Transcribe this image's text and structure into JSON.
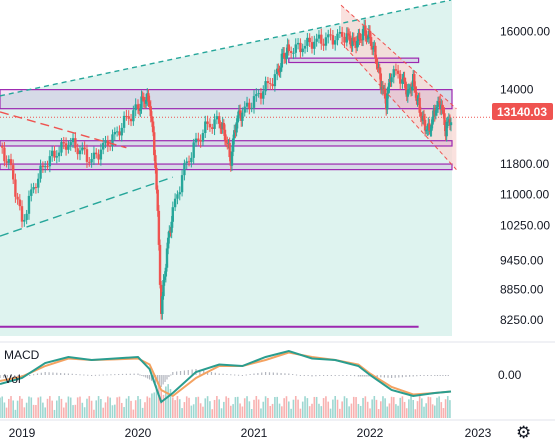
{
  "chart_data": {
    "type": "candlestick",
    "y_axis": {
      "scale": "log",
      "tick_labels": [
        "16000.00",
        "14000",
        "11800.00",
        "11000.00",
        "10250.00",
        "9450.00",
        "8850.00",
        "8250.00"
      ],
      "tick_values": [
        16000,
        14000,
        11800,
        11000,
        10250,
        9450,
        8850,
        8250
      ],
      "ylim": [
        7950,
        17200
      ]
    },
    "x_axis": {
      "tick_labels": [
        "2019",
        "2020",
        "2021",
        "2022",
        "2023"
      ],
      "tick_values": [
        2019,
        2020,
        2021,
        2022,
        2023
      ],
      "xlim": [
        2018.8,
        2023.2
      ]
    },
    "last_price": {
      "label": "13140.03",
      "value": 13140,
      "color": "#ef5350"
    },
    "zones": [
      {
        "y_from": 13400,
        "y_to": 14000
      },
      {
        "y_from": 12300,
        "y_to": 12450
      },
      {
        "y_from": 11650,
        "y_to": 11800
      },
      {
        "y_from": 14900,
        "y_to": 15050
      }
    ],
    "support_line": {
      "value": 8120,
      "x_from": 2018.8,
      "x_to": 2022.45
    },
    "channel": {
      "x_from": 2021.75,
      "x_to": 2022.8,
      "top": [
        17000,
        13400
      ],
      "bottom": [
        15600,
        11650
      ]
    },
    "trendlines": [
      {
        "style": "dashed",
        "color": "#26a69a",
        "x1": 2018.8,
        "y1": 13800,
        "x2": 2022.75,
        "y2": 17200
      },
      {
        "style": "dashed",
        "color": "#26a69a",
        "x1": 2018.8,
        "y1": 10000,
        "x2": 2020.3,
        "y2": 11450
      },
      {
        "style": "dashed",
        "color": "#ef5350",
        "x1": 2018.8,
        "y1": 13300,
        "x2": 2019.9,
        "y2": 12250
      }
    ],
    "macd": {
      "label": "MACD",
      "tick_label": "0.00",
      "x": [
        2018.8,
        2019.0,
        2019.2,
        2019.4,
        2019.6,
        2019.8,
        2020.0,
        2020.1,
        2020.2,
        2020.3,
        2020.5,
        2020.7,
        2020.9,
        2021.1,
        2021.3,
        2021.5,
        2021.7,
        2021.9,
        2022.0,
        2022.2,
        2022.4,
        2022.6,
        2022.75
      ],
      "macd_line": [
        -0.3,
        -0.1,
        0.4,
        0.6,
        0.5,
        0.55,
        0.6,
        0.2,
        -0.9,
        -0.6,
        0.1,
        0.35,
        0.3,
        0.6,
        0.8,
        0.55,
        0.5,
        0.3,
        0.0,
        -0.5,
        -0.7,
        -0.6,
        -0.55
      ],
      "signal_line": [
        -0.2,
        -0.05,
        0.3,
        0.55,
        0.5,
        0.52,
        0.55,
        0.35,
        -0.5,
        -0.7,
        -0.1,
        0.3,
        0.3,
        0.5,
        0.75,
        0.6,
        0.5,
        0.35,
        0.05,
        -0.4,
        -0.65,
        -0.6,
        -0.55
      ]
    },
    "volume": {
      "label": "Vol"
    },
    "colors": {
      "up": "#26a69a",
      "down": "#ef5350",
      "macd": "#2a9d8f",
      "signal": "#f4a261",
      "zone": "#9c27b0",
      "cloud": "#d3efe9"
    }
  },
  "settings_icon": "gear-icon"
}
